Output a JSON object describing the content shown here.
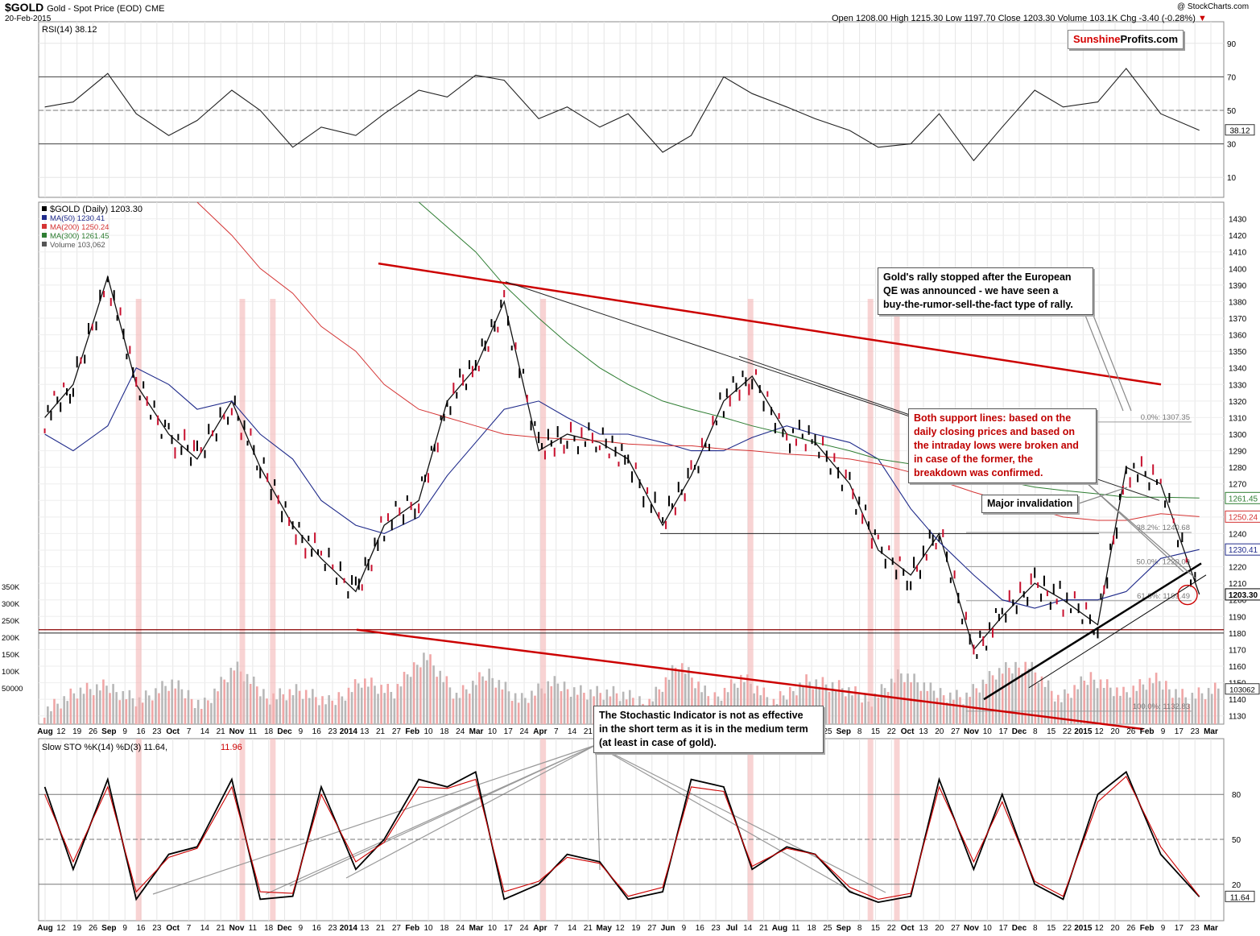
{
  "header": {
    "symbol": "$GOLD",
    "description": "Gold - Spot Price (EOD)",
    "exchange": "CME",
    "date": "20-Feb-2015",
    "copyright": "@ StockCharts.com",
    "open_label": "Open",
    "open": "1208.00",
    "high_label": "High",
    "high": "1215.30",
    "low_label": "Low",
    "low": "1197.70",
    "close_label": "Close",
    "close": "1203.30",
    "volume_label": "Volume",
    "volume": "103.1K",
    "chg_label": "Chg",
    "chg": "-3.40 (-0.28%)"
  },
  "brand": {
    "part1": "Sunshine",
    "part2": "Profits.com"
  },
  "annotations": {
    "rally": [
      "Gold's rally stopped after the European",
      "QE was announced - we have seen a",
      "buy-the-rumor-sell-the-fact type of rally."
    ],
    "support": [
      "Both support lines: based on the",
      "daily closing prices and based on",
      "the intraday lows were broken and",
      "in case of the former, the",
      "breakdown was confirmed."
    ],
    "invalidation": "Major invalidation",
    "stochastic": [
      "The Stochastic Indicator is not as effective",
      "in the short term as it is in the medium term",
      "(at least in case of gold)."
    ]
  },
  "colors": {
    "up": "#000000",
    "down": "#c8102e",
    "ma50": "#1f2a8a",
    "ma200": "#d43333",
    "ma300": "#2e7d32",
    "trend_red": "#cc0000",
    "highlight": "#f4b6b6",
    "volume_down": "#f0a6a6",
    "volume_up": "#b8b8b8"
  },
  "chart_data": [
    {
      "type": "line",
      "panel": "rsi",
      "legend": "RSI(14) 38.12",
      "ylim": [
        0,
        100
      ],
      "yticks": [
        10,
        30,
        50,
        70,
        90
      ],
      "last_value": "38.12",
      "reference_lines": [
        30,
        50,
        70
      ],
      "x_dates": [
        "2013-08-01",
        "2013-08-15",
        "2013-09-01",
        "2013-09-15",
        "2013-10-01",
        "2013-10-15",
        "2013-11-01",
        "2013-11-15",
        "2013-12-01",
        "2013-12-15",
        "2014-01-01",
        "2014-01-15",
        "2014-02-01",
        "2014-02-15",
        "2014-03-01",
        "2014-03-15",
        "2014-04-01",
        "2014-04-15",
        "2014-05-01",
        "2014-05-15",
        "2014-06-01",
        "2014-06-15",
        "2014-07-01",
        "2014-07-15",
        "2014-08-01",
        "2014-08-15",
        "2014-09-01",
        "2014-09-15",
        "2014-10-01",
        "2014-10-15",
        "2014-11-01",
        "2014-11-15",
        "2014-12-01",
        "2014-12-15",
        "2015-01-01",
        "2015-01-15",
        "2015-02-01",
        "2015-02-20"
      ],
      "values": [
        52,
        55,
        72,
        48,
        35,
        44,
        62,
        50,
        28,
        40,
        35,
        48,
        62,
        58,
        71,
        68,
        45,
        52,
        40,
        48,
        25,
        35,
        70,
        60,
        52,
        45,
        38,
        28,
        30,
        48,
        20,
        40,
        62,
        52,
        55,
        75,
        48,
        38.12
      ]
    },
    {
      "type": "line",
      "panel": "price",
      "legend": "$GOLD (Daily) 1203.30",
      "ylim": [
        1125,
        1440
      ],
      "yticks": [
        1130,
        1140,
        1150,
        1160,
        1170,
        1180,
        1190,
        1200,
        1210,
        1220,
        1230,
        1240,
        1250,
        1260,
        1270,
        1280,
        1290,
        1300,
        1310,
        1320,
        1330,
        1340,
        1350,
        1360,
        1370,
        1380,
        1390,
        1400,
        1410,
        1420,
        1430
      ],
      "x_dates": [
        "2013-08-01",
        "2013-08-15",
        "2013-09-01",
        "2013-09-15",
        "2013-10-01",
        "2013-10-15",
        "2013-11-01",
        "2013-11-15",
        "2013-12-01",
        "2013-12-15",
        "2014-01-01",
        "2014-01-15",
        "2014-02-01",
        "2014-02-15",
        "2014-03-01",
        "2014-03-15",
        "2014-04-01",
        "2014-04-15",
        "2014-05-01",
        "2014-05-15",
        "2014-06-01",
        "2014-06-15",
        "2014-07-01",
        "2014-07-15",
        "2014-08-01",
        "2014-08-15",
        "2014-09-01",
        "2014-09-15",
        "2014-10-01",
        "2014-10-15",
        "2014-11-01",
        "2014-11-15",
        "2014-12-01",
        "2014-12-15",
        "2015-01-01",
        "2015-01-15",
        "2015-02-01",
        "2015-02-20"
      ],
      "series": [
        {
          "name": "$GOLD",
          "values": [
            1310,
            1330,
            1395,
            1330,
            1300,
            1285,
            1320,
            1280,
            1245,
            1225,
            1205,
            1245,
            1260,
            1320,
            1340,
            1380,
            1290,
            1300,
            1295,
            1285,
            1245,
            1275,
            1320,
            1335,
            1300,
            1295,
            1270,
            1230,
            1215,
            1240,
            1170,
            1190,
            1210,
            1200,
            1185,
            1280,
            1270,
            1203.3
          ]
        },
        {
          "name": "MA(50) 1230.41",
          "values": [
            1300,
            1290,
            1305,
            1340,
            1330,
            1315,
            1320,
            1300,
            1285,
            1260,
            1245,
            1240,
            1250,
            1275,
            1295,
            1315,
            1320,
            1310,
            1300,
            1300,
            1295,
            1290,
            1290,
            1298,
            1305,
            1300,
            1295,
            1285,
            1255,
            1235,
            1215,
            1200,
            1195,
            1200,
            1200,
            1205,
            1225,
            1230.41
          ]
        },
        {
          "name": "MA(200) 1250.24",
          "values": [
            null,
            null,
            null,
            null,
            null,
            1440,
            1420,
            1400,
            1385,
            1365,
            1350,
            1330,
            1315,
            1310,
            1305,
            1300,
            1298,
            1297,
            1296,
            1294,
            1293,
            1293,
            1291,
            1290,
            1288,
            1287,
            1285,
            1282,
            1277,
            1272,
            1265,
            1260,
            1255,
            1250,
            1248,
            1248,
            1252,
            1250.24
          ]
        },
        {
          "name": "MA(300) 1261.45",
          "values": [
            null,
            null,
            null,
            null,
            null,
            null,
            null,
            null,
            null,
            null,
            null,
            null,
            1440,
            1425,
            1410,
            1390,
            1370,
            1355,
            1340,
            1330,
            1320,
            1315,
            1310,
            1305,
            1300,
            1295,
            1290,
            1285,
            1282,
            1280,
            1275,
            1272,
            1268,
            1266,
            1264,
            1262,
            1262,
            1261.45
          ]
        }
      ],
      "last_labels": [
        "1261.45",
        "1250.24",
        "1230.41",
        "1203.30"
      ],
      "fibonacci": [
        {
          "label": "0.0%: 1307.35",
          "value": 1307.35
        },
        {
          "label": "38.2%: 1240.68",
          "value": 1240.68
        },
        {
          "label": "50.0%: 1220.09",
          "value": 1220.09
        },
        {
          "label": "61.8%: 1199.49",
          "value": 1199.49
        },
        {
          "label": "100.0%: 1132.83",
          "value": 1132.83
        }
      ],
      "horizontal_levels": [
        1240,
        1182,
        1180
      ]
    },
    {
      "type": "bar",
      "panel": "volume",
      "legend": "Volume 103,062",
      "yticks": [
        "50000",
        "100K",
        "150K",
        "200K",
        "250K",
        "300K",
        "350K"
      ],
      "last_value": "103062",
      "values_k": [
        40,
        95,
        110,
        70,
        120,
        55,
        170,
        80,
        100,
        60,
        130,
        90,
        210,
        80,
        150,
        70,
        120,
        95,
        90,
        60,
        180,
        70,
        140,
        60,
        130,
        110,
        70,
        150,
        95,
        80,
        150,
        180,
        70,
        140,
        90,
        130,
        80,
        103.062
      ]
    },
    {
      "type": "line",
      "panel": "stochastic",
      "legend": "Slow STO %K(14) %D(3) 11.64, 11.96",
      "ylim": [
        0,
        100
      ],
      "yticks": [
        20,
        50,
        80
      ],
      "reference_lines": [
        20,
        50,
        80
      ],
      "last_value": "11.64",
      "x_dates": [
        "2013-08-01",
        "2013-08-15",
        "2013-09-01",
        "2013-09-15",
        "2013-10-01",
        "2013-10-15",
        "2013-11-01",
        "2013-11-15",
        "2013-12-01",
        "2013-12-15",
        "2014-01-01",
        "2014-01-15",
        "2014-02-01",
        "2014-02-15",
        "2014-03-01",
        "2014-03-15",
        "2014-04-01",
        "2014-04-15",
        "2014-05-01",
        "2014-05-15",
        "2014-06-01",
        "2014-06-15",
        "2014-07-01",
        "2014-07-15",
        "2014-08-01",
        "2014-08-15",
        "2014-09-01",
        "2014-09-15",
        "2014-10-01",
        "2014-10-15",
        "2014-11-01",
        "2014-11-15",
        "2014-12-01",
        "2014-12-15",
        "2015-01-01",
        "2015-01-15",
        "2015-02-01",
        "2015-02-20"
      ],
      "series": [
        {
          "name": "%K",
          "values": [
            85,
            30,
            90,
            10,
            40,
            45,
            90,
            10,
            12,
            85,
            30,
            50,
            90,
            85,
            95,
            10,
            20,
            40,
            35,
            10,
            15,
            90,
            85,
            30,
            45,
            40,
            15,
            8,
            12,
            90,
            30,
            80,
            20,
            10,
            80,
            95,
            40,
            11.64
          ]
        },
        {
          "name": "%D",
          "values": [
            80,
            35,
            85,
            15,
            38,
            44,
            85,
            15,
            14,
            80,
            35,
            48,
            85,
            84,
            90,
            15,
            22,
            38,
            34,
            12,
            18,
            85,
            82,
            32,
            44,
            40,
            18,
            10,
            14,
            85,
            35,
            75,
            22,
            12,
            75,
            92,
            45,
            11.96
          ]
        }
      ]
    }
  ],
  "x_axis": {
    "labels": [
      "Aug",
      "12",
      "19",
      "26",
      "Sep",
      "9",
      "16",
      "23",
      "Oct",
      "7",
      "14",
      "21",
      "Nov",
      "11",
      "18",
      "Dec",
      "9",
      "16",
      "23",
      "2014",
      "13",
      "21",
      "27",
      "Feb",
      "10",
      "18",
      "24",
      "Mar",
      "10",
      "17",
      "24",
      "Apr",
      "7",
      "14",
      "21",
      "May",
      "12",
      "19",
      "27",
      "Jun",
      "9",
      "16",
      "23",
      "Jul",
      "14",
      "21",
      "Aug",
      "11",
      "18",
      "25",
      "Sep",
      "8",
      "15",
      "22",
      "Oct",
      "13",
      "20",
      "27",
      "Nov",
      "10",
      "17",
      "Dec",
      "8",
      "15",
      "22",
      "2015",
      "12",
      "20",
      "26",
      "Feb",
      "9",
      "17",
      "23",
      "Mar"
    ],
    "bold": [
      "Aug",
      "Sep",
      "Oct",
      "Nov",
      "Dec",
      "2014",
      "Feb",
      "Mar",
      "Apr",
      "May",
      "Jun",
      "Jul",
      "2015"
    ]
  }
}
